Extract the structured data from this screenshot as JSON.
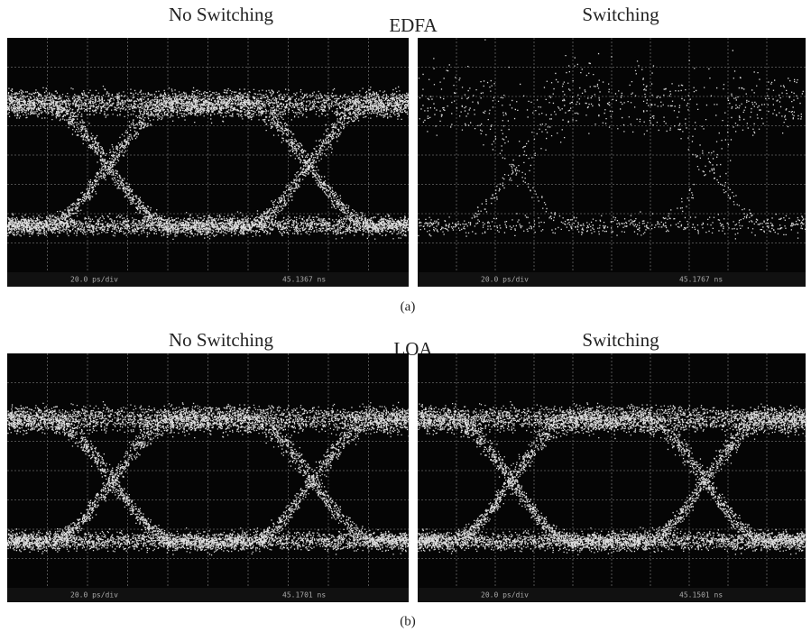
{
  "figure": {
    "a": {
      "label": "(a)",
      "center_label": "EDFA",
      "panels": [
        {
          "title": "No Switching",
          "scale": "20.0 ps/div",
          "time": "45.1367 ns"
        },
        {
          "title": "Switching",
          "scale": "20.0 ps/div",
          "time": "45.1767 ns"
        }
      ]
    },
    "b": {
      "label": "(b)",
      "center_label": "LOA",
      "panels": [
        {
          "title": "No Switching",
          "scale": "20.0 ps/div",
          "time": "45.1701 ns"
        },
        {
          "title": "Switching",
          "scale": "20.0 ps/div",
          "time": "45.1501 ns"
        }
      ]
    }
  }
}
